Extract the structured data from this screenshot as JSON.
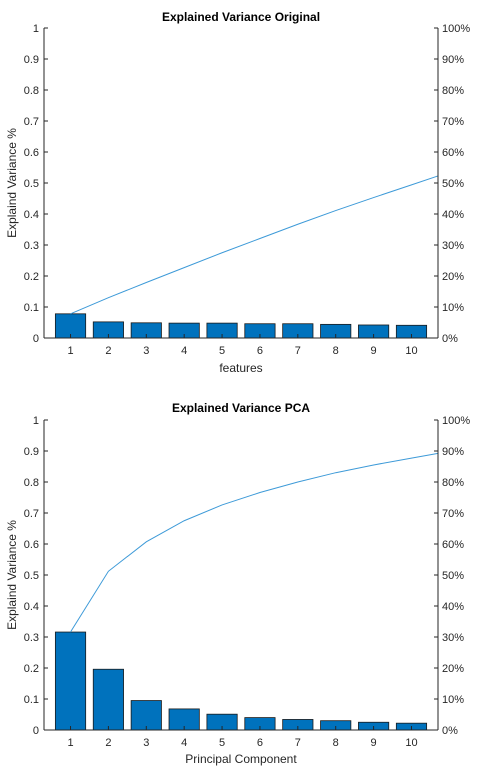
{
  "colors": {
    "bar": "#0072BD",
    "line": "#3d9ad8",
    "axis": "#262626"
  },
  "chart_data": [
    {
      "type": "bar",
      "title": "Explained Variance Original",
      "xlabel": "features",
      "ylabel": "Explaind Variance %",
      "categories": [
        "1",
        "2",
        "3",
        "4",
        "5",
        "6",
        "7",
        "8",
        "9",
        "10"
      ],
      "values": [
        0.078,
        0.052,
        0.049,
        0.048,
        0.048,
        0.046,
        0.046,
        0.044,
        0.042,
        0.041
      ],
      "cumulative_percent": [
        7.8,
        13.0,
        17.9,
        22.7,
        27.5,
        32.1,
        36.7,
        41.1,
        45.3,
        49.4
      ],
      "ylim": [
        0,
        1
      ],
      "y2lim": [
        0,
        100
      ],
      "yticks": [
        "0",
        "0.1",
        "0.2",
        "0.3",
        "0.4",
        "0.5",
        "0.6",
        "0.7",
        "0.8",
        "0.9",
        "1"
      ],
      "y2ticks": [
        "0%",
        "10%",
        "20%",
        "30%",
        "40%",
        "50%",
        "60%",
        "70%",
        "80%",
        "90%",
        "100%"
      ],
      "grid": false
    },
    {
      "type": "bar",
      "title": "Explained Variance PCA",
      "xlabel": "Principal Component",
      "ylabel": "Explaind Variance %",
      "categories": [
        "1",
        "2",
        "3",
        "4",
        "5",
        "6",
        "7",
        "8",
        "9",
        "10"
      ],
      "values": [
        0.316,
        0.196,
        0.095,
        0.068,
        0.051,
        0.04,
        0.034,
        0.03,
        0.025,
        0.022
      ],
      "cumulative_percent": [
        31.6,
        51.2,
        60.7,
        67.5,
        72.6,
        76.6,
        80.0,
        83.0,
        85.5,
        87.7
      ],
      "ylim": [
        0,
        1
      ],
      "y2lim": [
        0,
        100
      ],
      "yticks": [
        "0",
        "0.1",
        "0.2",
        "0.3",
        "0.4",
        "0.5",
        "0.6",
        "0.7",
        "0.8",
        "0.9",
        "1"
      ],
      "y2ticks": [
        "0%",
        "10%",
        "20%",
        "30%",
        "40%",
        "50%",
        "60%",
        "70%",
        "80%",
        "90%",
        "100%"
      ],
      "grid": false
    }
  ]
}
